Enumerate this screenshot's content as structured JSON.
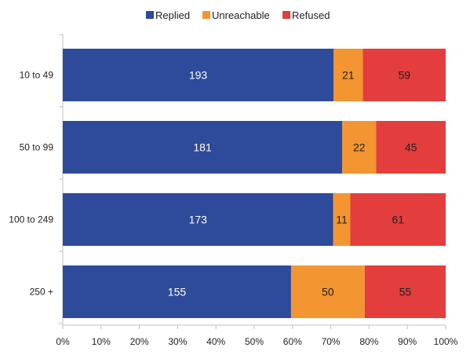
{
  "chart_data": {
    "type": "bar",
    "orientation": "horizontal",
    "stacking": "percent",
    "categories": [
      "10 to 49",
      "50 to 99",
      "100 to 249",
      "250 +"
    ],
    "series": [
      {
        "name": "Replied",
        "values": [
          193,
          181,
          173,
          155
        ],
        "color": "#2e4a9a",
        "label_color": "#ffffff"
      },
      {
        "name": "Unreachable",
        "values": [
          21,
          22,
          11,
          50
        ],
        "color": "#f39530",
        "label_color": "#222222"
      },
      {
        "name": "Refused",
        "values": [
          59,
          45,
          61,
          55
        ],
        "color": "#e33d3d",
        "label_color": "#222222"
      }
    ],
    "x_ticks": [
      "0%",
      "10%",
      "20%",
      "30%",
      "40%",
      "50%",
      "60%",
      "70%",
      "80%",
      "90%",
      "100%"
    ],
    "xlim": [
      0,
      100
    ],
    "legend_position": "top-center",
    "grid": false
  }
}
